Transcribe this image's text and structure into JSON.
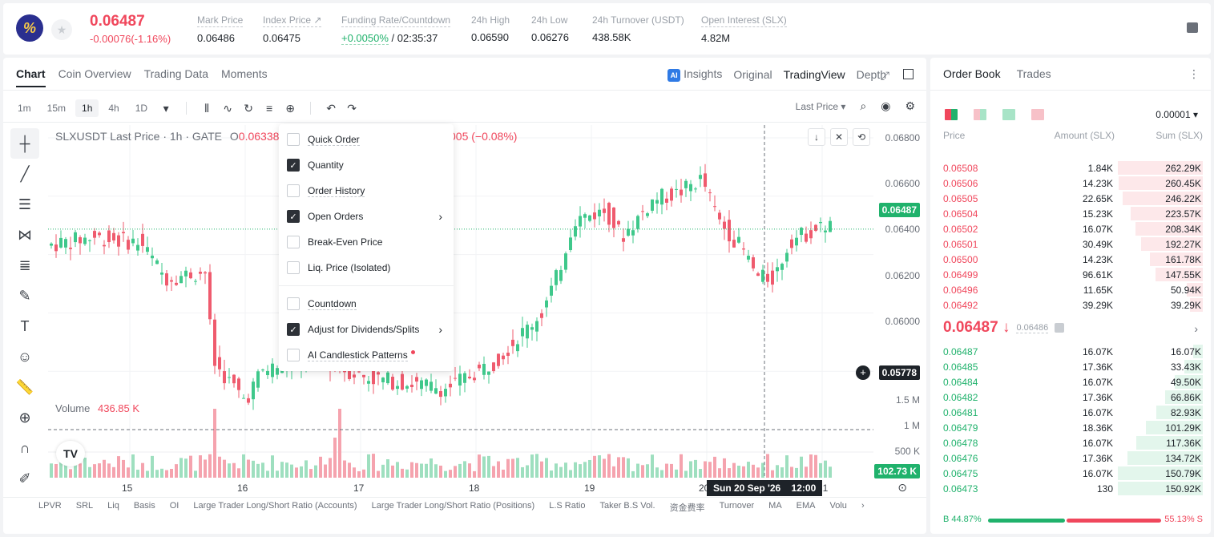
{
  "header": {
    "last_price": "0.06487",
    "change": "-0.00076(-1.16%)",
    "stats": [
      {
        "label": "Mark Price",
        "value": "0.06486"
      },
      {
        "label": "Index Price ↗",
        "value": "0.06475"
      },
      {
        "label": "Funding Rate/Countdown",
        "value": "",
        "funding": "+0.0050%",
        "countdown": "/ 02:35:37"
      },
      {
        "label": "24h High",
        "value": "0.06590"
      },
      {
        "label": "24h Low",
        "value": "0.06276"
      },
      {
        "label": "24h Turnover (USDT)",
        "value": "438.58K"
      },
      {
        "label": "Open Interest (SLX)",
        "value": "4.82M"
      }
    ]
  },
  "chart_tabs": [
    "Chart",
    "Coin Overview",
    "Trading Data",
    "Moments"
  ],
  "view_tabs": {
    "insights": "Insights",
    "original": "Original",
    "tradingview": "TradingView",
    "depth": "Depth"
  },
  "intervals": [
    "1m",
    "15m",
    "1h",
    "4h",
    "1D"
  ],
  "price_type": "Last Price ▾",
  "legend": {
    "symbol": "SLXUSDT Last Price · 1h · GATE",
    "o": "O",
    "o_val": "0.06338",
    "chg": "005 (−0.08%)"
  },
  "volume_legend": {
    "label": "Volume",
    "value": "436.85 K"
  },
  "y_axis": [
    "0.06800",
    "0.06600",
    "0.06400",
    "0.06200",
    "0.06000",
    "0.05778"
  ],
  "y_axis_volume": [
    "1.5 M",
    "1 M",
    "500 K"
  ],
  "current_price_tag": "0.06487",
  "cross_price_tag": "0.05778",
  "volume_tag": "102.73 K",
  "x_axis": [
    "15",
    "16",
    "17",
    "18",
    "19",
    "20",
    "21"
  ],
  "crosshair_time": "Sun 20 Sep '26    12:00",
  "indicators": [
    "LPVR",
    "SRL",
    "Liq",
    "Basis",
    "OI",
    "Large Trader Long/Short Ratio (Accounts)",
    "Large Trader Long/Short Ratio (Positions)",
    "L.S Ratio",
    "Taker B.S Vol.",
    "资金费率",
    "Turnover",
    "MA",
    "EMA",
    "Volu"
  ],
  "menu": {
    "items": [
      {
        "label": "Quick Order",
        "checked": false
      },
      {
        "label": "Quantity",
        "checked": true
      },
      {
        "label": "Order History",
        "checked": false
      },
      {
        "label": "Open Orders",
        "checked": true,
        "submenu": true
      },
      {
        "label": "Break-Even Price",
        "checked": false
      },
      {
        "label": "Liq. Price (Isolated)",
        "checked": false
      },
      {
        "label": "Countdown",
        "checked": false
      },
      {
        "label": "Adjust for Dividends/Splits",
        "checked": true,
        "submenu": true
      },
      {
        "label": "AI Candlestick Patterns",
        "checked": false,
        "dot": true
      }
    ]
  },
  "book": {
    "tabs": [
      "Order Book",
      "Trades"
    ],
    "precision": "0.00001 ▾",
    "headers": {
      "price": "Price",
      "amount": "Amount (SLX)",
      "sum": "Sum (SLX)"
    },
    "asks": [
      {
        "p": "0.06508",
        "a": "1.84K",
        "s": "262.29K",
        "w": 1.0
      },
      {
        "p": "0.06506",
        "a": "14.23K",
        "s": "260.45K",
        "w": 0.99
      },
      {
        "p": "0.06505",
        "a": "22.65K",
        "s": "246.22K",
        "w": 0.94
      },
      {
        "p": "0.06504",
        "a": "15.23K",
        "s": "223.57K",
        "w": 0.85
      },
      {
        "p": "0.06502",
        "a": "16.07K",
        "s": "208.34K",
        "w": 0.79
      },
      {
        "p": "0.06501",
        "a": "30.49K",
        "s": "192.27K",
        "w": 0.73
      },
      {
        "p": "0.06500",
        "a": "14.23K",
        "s": "161.78K",
        "w": 0.62
      },
      {
        "p": "0.06499",
        "a": "96.61K",
        "s": "147.55K",
        "w": 0.56
      },
      {
        "p": "0.06496",
        "a": "11.65K",
        "s": "50.94K",
        "w": 0.19
      },
      {
        "p": "0.06492",
        "a": "39.29K",
        "s": "39.29K",
        "w": 0.15
      }
    ],
    "mid_price": "0.06487 ↓",
    "mark_price": "0.06486",
    "bids": [
      {
        "p": "0.06487",
        "a": "16.07K",
        "s": "16.07K",
        "w": 0.11
      },
      {
        "p": "0.06485",
        "a": "17.36K",
        "s": "33.43K",
        "w": 0.22
      },
      {
        "p": "0.06484",
        "a": "16.07K",
        "s": "49.50K",
        "w": 0.33
      },
      {
        "p": "0.06482",
        "a": "17.36K",
        "s": "66.86K",
        "w": 0.44
      },
      {
        "p": "0.06481",
        "a": "16.07K",
        "s": "82.93K",
        "w": 0.55
      },
      {
        "p": "0.06479",
        "a": "18.36K",
        "s": "101.29K",
        "w": 0.67
      },
      {
        "p": "0.06478",
        "a": "16.07K",
        "s": "117.36K",
        "w": 0.78
      },
      {
        "p": "0.06476",
        "a": "17.36K",
        "s": "134.72K",
        "w": 0.89
      },
      {
        "p": "0.06475",
        "a": "16.07K",
        "s": "150.79K",
        "w": 1.0
      },
      {
        "p": "0.06473",
        "a": "130",
        "s": "150.92K",
        "w": 1.0
      }
    ],
    "buy_ratio": "B 44.87%",
    "sell_ratio": "55.13% S"
  },
  "colors": {
    "up": "#20b26c",
    "down": "#f0475c",
    "candle_up": "#3fc88b",
    "candle_down": "#ef5b6e"
  }
}
